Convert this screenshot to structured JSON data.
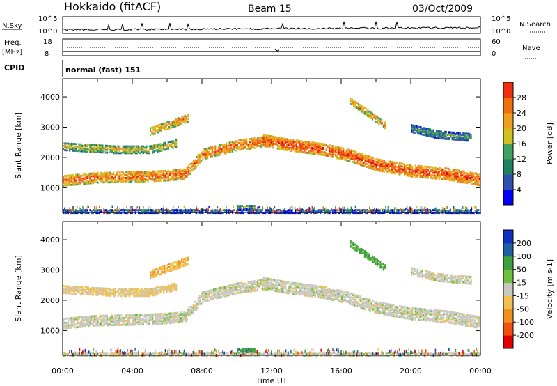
{
  "header": {
    "station": "Hokkaido (fitACF)",
    "beam": "Beam 15",
    "date": "03/Oct/2009"
  },
  "info_panels": {
    "nsky_label": "N.Sky",
    "nsky_top": "10^5",
    "nsky_bottom": "10^0",
    "nsearch_label": "N.Search",
    "nsearch_top": "10^5",
    "nsearch_bottom": "10^0",
    "freq_label": "Freq.",
    "freq_unit": "[MHz]",
    "freq_top": "18",
    "freq_bottom": "8",
    "nave_label": "Nave",
    "nave_top": "60",
    "nave_bottom": "0",
    "cpid_label": "CPID",
    "cpid_value": "normal (fast) 151"
  },
  "colors": {
    "power_scale": [
      "#0000ff",
      "#3050b0",
      "#208060",
      "#40a060",
      "#d0c020",
      "#f0a020",
      "#f07010",
      "#f03010",
      "#e00000"
    ],
    "velocity_scale": [
      "#1030c0",
      "#2060a0",
      "#40a040",
      "#70c040",
      "#c8c8c0",
      "#f0c050",
      "#f09020",
      "#f05010",
      "#e00000"
    ]
  },
  "chart_data": [
    {
      "type": "heatmap",
      "parameter": "Power",
      "ylabel": "Slant Range [km]",
      "ylim": [
        180,
        4600
      ],
      "xlim": [
        0,
        24
      ],
      "yticks": [
        "1000",
        "2000",
        "3000",
        "4000"
      ],
      "colorbar": {
        "label": "Power [dB]",
        "ticks": [
          "4",
          "8",
          "12",
          "16",
          "20",
          "24",
          "28"
        ],
        "range": [
          0,
          32
        ]
      },
      "echo_bands": [
        {
          "t": [
            0,
            2,
            4,
            6,
            7,
            7.5,
            8,
            10,
            12
          ],
          "range": [
            1280,
            1380,
            1400,
            1450,
            1500,
            1800,
            2150,
            2450,
            2600
          ],
          "width": 350,
          "value": 24
        },
        {
          "t": [
            11.5,
            13,
            15,
            16.5,
            18,
            20,
            22,
            24
          ],
          "range": [
            2600,
            2450,
            2300,
            2100,
            1800,
            1600,
            1500,
            1300
          ],
          "width": 380,
          "value": 26
        },
        {
          "t": [
            0,
            1.5,
            3,
            5,
            6.5
          ],
          "range": [
            2400,
            2350,
            2300,
            2300,
            2500
          ],
          "width": 250,
          "value": 18
        },
        {
          "t": [
            5,
            6,
            7.2
          ],
          "range": [
            2900,
            3100,
            3350
          ],
          "width": 250,
          "value": 22
        },
        {
          "t": [
            16.5,
            17.5,
            18.5
          ],
          "range": [
            3900,
            3500,
            3100
          ],
          "width": 200,
          "value": 22
        },
        {
          "t": [
            20,
            21.5,
            23.5
          ],
          "range": [
            3000,
            2800,
            2700
          ],
          "width": 250,
          "value": 12
        },
        {
          "t": [
            10,
            11
          ],
          "range": [
            400,
            400
          ],
          "width": 120,
          "value": 14
        },
        {
          "t": [
            0,
            24
          ],
          "range": [
            260,
            260
          ],
          "width": 120,
          "value": 10
        }
      ]
    },
    {
      "type": "heatmap",
      "parameter": "Velocity",
      "ylabel": "Slant Range [km]",
      "xlabel": "Time UT",
      "ylim": [
        180,
        4600
      ],
      "xlim": [
        0,
        24
      ],
      "yticks": [
        "1000",
        "2000",
        "3000",
        "4000"
      ],
      "xticks": [
        "00:00",
        "04:00",
        "08:00",
        "12:00",
        "16:00",
        "20:00",
        "00:00"
      ],
      "colorbar": {
        "label": "Velocity [m s-1]",
        "ticks": [
          "200",
          "100",
          "50",
          "15",
          "-15",
          "-50",
          "-100",
          "-200"
        ]
      },
      "echo_bands": [
        {
          "t": [
            0,
            2,
            4,
            6,
            7,
            7.5,
            8,
            10,
            12
          ],
          "range": [
            1280,
            1380,
            1400,
            1450,
            1500,
            1800,
            2150,
            2450,
            2600
          ],
          "width": 350,
          "value": 0
        },
        {
          "t": [
            11.5,
            13,
            15,
            16.5,
            18,
            20,
            22,
            24
          ],
          "range": [
            2600,
            2450,
            2300,
            2100,
            1800,
            1600,
            1500,
            1300
          ],
          "width": 380,
          "value": 0
        },
        {
          "t": [
            0,
            1.5,
            3,
            5,
            6.5
          ],
          "range": [
            2400,
            2350,
            2300,
            2300,
            2500
          ],
          "width": 250,
          "value": -20
        },
        {
          "t": [
            5,
            6,
            7.2
          ],
          "range": [
            2900,
            3100,
            3350
          ],
          "width": 250,
          "value": -40
        },
        {
          "t": [
            16.5,
            17.5,
            18.5
          ],
          "range": [
            3900,
            3500,
            3100
          ],
          "width": 200,
          "value": 40
        },
        {
          "t": [
            20,
            21.5,
            23.5
          ],
          "range": [
            3000,
            2800,
            2700
          ],
          "width": 250,
          "value": 0
        },
        {
          "t": [
            10,
            11
          ],
          "range": [
            400,
            400
          ],
          "width": 120,
          "value": 60
        },
        {
          "t": [
            0,
            24
          ],
          "range": [
            260,
            260
          ],
          "width": 120,
          "value": 0
        }
      ]
    }
  ]
}
